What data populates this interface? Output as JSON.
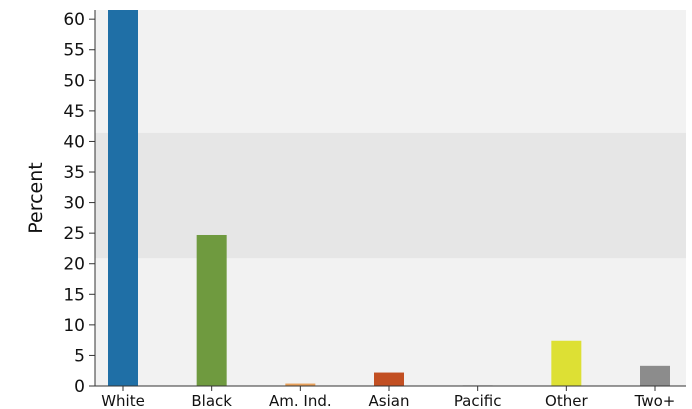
{
  "chart_data": {
    "type": "bar",
    "title": "",
    "xlabel": "",
    "ylabel": "Percent",
    "categories": [
      "White",
      "Black",
      "Am. Ind.",
      "Asian",
      "Pacific",
      "Other",
      "Two+"
    ],
    "values": [
      62,
      24.7,
      0.4,
      2.2,
      0.1,
      7.4,
      3.3
    ],
    "ylim": [
      0,
      61.5
    ],
    "yticks": [
      "0",
      "5",
      "10",
      "15",
      "20",
      "25",
      "30",
      "35",
      "40",
      "45",
      "50",
      "55",
      "60"
    ],
    "shaded_band": [
      20.9,
      41.4
    ],
    "grid": false,
    "legend": "none",
    "colors": {
      "White": "#1f6fa6",
      "Black": "#6f9a3f",
      "Am. Ind.": "#e8a05a",
      "Asian": "#c24f22",
      "Pacific": "#9a9a9a",
      "Other": "#dde034",
      "Two+": "#8c8c8c",
      "plot_background": "#f2f2f2",
      "band": "#e6e6e6"
    }
  }
}
